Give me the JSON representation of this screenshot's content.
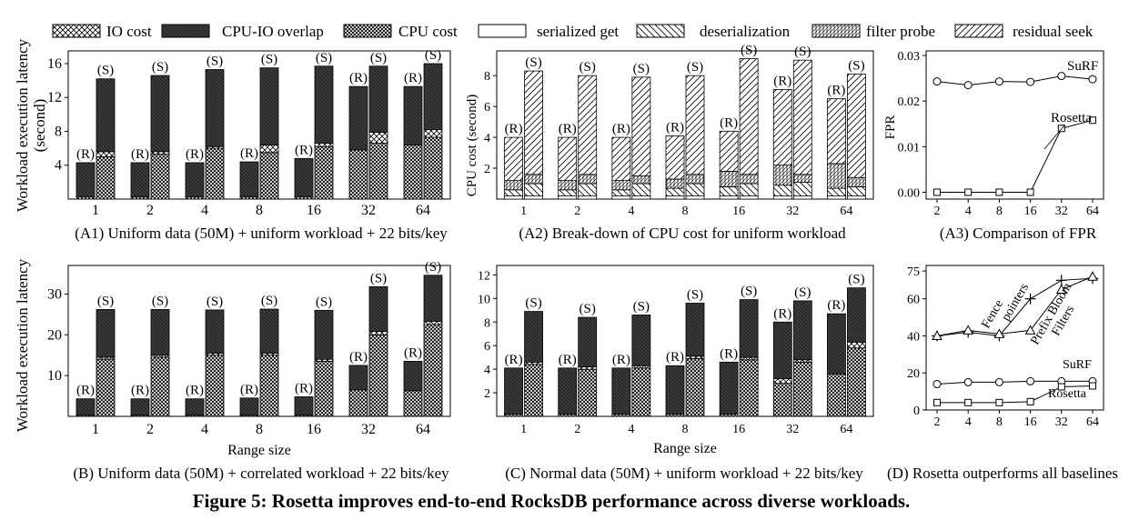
{
  "figure_caption": "Figure 5: Rosetta improves end-to-end RocksDB performance across diverse workloads.",
  "legend": [
    {
      "label": "IO cost",
      "pattern": "xhatch"
    },
    {
      "label": "CPU-IO overlap",
      "pattern": "dark"
    },
    {
      "label": "CPU cost",
      "pattern": "dense"
    },
    {
      "label": "serialized get",
      "pattern": "white"
    },
    {
      "label": "deserialization",
      "pattern": "back"
    },
    {
      "label": "filter probe",
      "pattern": "vert"
    },
    {
      "label": "residual seek",
      "pattern": "fwd"
    }
  ],
  "chart_data": [
    {
      "id": "A1",
      "type": "bar",
      "caption": "(A1) Uniform data (50M) + uniform workload + 22 bits/key",
      "ylabel": "Workload execution latency (second)",
      "ylabel_lines": [
        "Workload execution latency",
        "(second)"
      ],
      "xlabel": "",
      "ylim": [
        0,
        17.5
      ],
      "yticks": [
        4,
        8,
        12,
        16
      ],
      "categories": [
        "1",
        "2",
        "4",
        "8",
        "16",
        "32",
        "64"
      ],
      "bar_labels": [
        "(R)",
        "(S)"
      ],
      "series": [
        {
          "name": "(R)",
          "stacks": [
            {
              "component": "CPU cost",
              "values": [
                0.3,
                0.3,
                0.3,
                0.3,
                0.3,
                5.8,
                6.4
              ]
            },
            {
              "component": "IO cost",
              "values": [
                0,
                0,
                0,
                0,
                0,
                0,
                0
              ]
            },
            {
              "component": "CPU-IO overlap",
              "values": [
                4.0,
                4.0,
                4.0,
                4.1,
                4.5,
                7.5,
                6.9
              ]
            }
          ]
        },
        {
          "name": "(S)",
          "stacks": [
            {
              "component": "CPU cost",
              "values": [
                5.0,
                5.3,
                6.0,
                5.5,
                6.2,
                6.6,
                7.3
              ]
            },
            {
              "component": "IO cost",
              "values": [
                0.6,
                0.3,
                0.2,
                0.9,
                0.4,
                1.3,
                0.9
              ]
            },
            {
              "component": "CPU-IO overlap",
              "values": [
                8.6,
                9.0,
                9.1,
                9.1,
                9.1,
                7.8,
                7.8
              ]
            }
          ]
        }
      ]
    },
    {
      "id": "A2",
      "type": "bar",
      "caption": "(A2) Break-down of CPU cost for uniform workload",
      "ylabel": "CPU cost (second)",
      "xlabel": "",
      "ylim": [
        0,
        9.6
      ],
      "yticks": [
        2,
        4,
        6,
        8
      ],
      "categories": [
        "1",
        "2",
        "4",
        "8",
        "16",
        "32",
        "64"
      ],
      "bar_labels": [
        "(R)",
        "(S)"
      ],
      "series": [
        {
          "name": "(R)",
          "stacks": [
            {
              "component": "serialized get",
              "values": [
                0.2,
                0.2,
                0.2,
                0.2,
                0.2,
                0.2,
                0.2
              ]
            },
            {
              "component": "deserialization",
              "values": [
                0.4,
                0.4,
                0.4,
                0.5,
                0.6,
                0.7,
                0.5
              ]
            },
            {
              "component": "filter probe",
              "values": [
                0.6,
                0.6,
                0.6,
                0.6,
                1.0,
                1.3,
                1.6
              ]
            },
            {
              "component": "residual seek",
              "values": [
                2.8,
                2.8,
                2.8,
                2.8,
                2.6,
                4.9,
                4.2
              ]
            }
          ]
        },
        {
          "name": "(S)",
          "stacks": [
            {
              "component": "serialized get",
              "values": [
                0.2,
                0.2,
                0.2,
                0.2,
                0.2,
                0.2,
                0.2
              ]
            },
            {
              "component": "deserialization",
              "values": [
                0.8,
                0.8,
                0.8,
                0.8,
                0.8,
                0.9,
                0.6
              ]
            },
            {
              "component": "filter probe",
              "values": [
                0.6,
                0.6,
                0.5,
                0.6,
                0.6,
                0.5,
                0.6
              ]
            },
            {
              "component": "residual seek",
              "values": [
                6.7,
                6.4,
                6.4,
                6.4,
                7.5,
                7.4,
                6.7
              ]
            }
          ]
        }
      ]
    },
    {
      "id": "A3",
      "type": "line",
      "caption": "(A3) Comparison of FPR",
      "ylabel": "FPR",
      "xlabel": "",
      "x": [
        "2",
        "4",
        "8",
        "16",
        "32",
        "64"
      ],
      "ylim": [
        -0.0015,
        0.031
      ],
      "yticks": [
        0.0,
        0.01,
        0.02,
        0.03
      ],
      "ytick_labels": [
        "0.00",
        "0.01",
        "0.02",
        "0.03"
      ],
      "series": [
        {
          "name": "SuRF",
          "marker": "circle",
          "values": [
            0.0243,
            0.0235,
            0.0243,
            0.0242,
            0.0255,
            0.0248
          ]
        },
        {
          "name": "Rosetta",
          "marker": "square",
          "values": [
            0.0,
            0.0,
            0.0,
            0.0,
            0.014,
            0.0158
          ]
        }
      ],
      "annotations": [
        "SuRF",
        "Rosetta"
      ]
    },
    {
      "id": "B",
      "type": "bar",
      "caption": "(B) Uniform data (50M) + correlated workload + 22 bits/key",
      "ylabel": "Workload execution latency (second)",
      "ylabel_lines": [
        "Workload execution latency"
      ],
      "xlabel": "Range size",
      "ylim": [
        0,
        37
      ],
      "yticks": [
        10,
        20,
        30
      ],
      "categories": [
        "1",
        "2",
        "4",
        "8",
        "16",
        "32",
        "64"
      ],
      "bar_labels": [
        "(R)",
        "(S)"
      ],
      "series": [
        {
          "name": "(R)",
          "stacks": [
            {
              "component": "CPU cost",
              "values": [
                0.3,
                0.3,
                0.3,
                0.3,
                0.3,
                6.5,
                6.3
              ]
            },
            {
              "component": "IO cost",
              "values": [
                0,
                0,
                0,
                0,
                0,
                0,
                0
              ]
            },
            {
              "component": "CPU-IO overlap",
              "values": [
                4.0,
                4.0,
                4.0,
                4.2,
                4.5,
                6.0,
                7.2
              ]
            }
          ]
        },
        {
          "name": "(S)",
          "stacks": [
            {
              "component": "CPU cost",
              "values": [
                14.0,
                14.5,
                15.0,
                15.0,
                13.5,
                20.0,
                22.5
              ]
            },
            {
              "component": "IO cost",
              "values": [
                0.5,
                0.5,
                0.5,
                0.5,
                0.5,
                0.8,
                0.8
              ]
            },
            {
              "component": "CPU-IO overlap",
              "values": [
                11.7,
                11.2,
                10.6,
                10.8,
                12.0,
                11.0,
                11.3
              ]
            }
          ]
        }
      ]
    },
    {
      "id": "C",
      "type": "bar",
      "caption": "(C) Normal data (50M) + uniform workload + 22 bits/key",
      "ylabel": "",
      "xlabel": "Range size",
      "ylim": [
        0,
        12.8
      ],
      "yticks": [
        2,
        4,
        6,
        8,
        10,
        12
      ],
      "categories": [
        "1",
        "2",
        "4",
        "8",
        "16",
        "32",
        "64"
      ],
      "bar_labels": [
        "(R)",
        "(S)"
      ],
      "series": [
        {
          "name": "(R)",
          "stacks": [
            {
              "component": "CPU cost",
              "values": [
                0.2,
                0.2,
                0.2,
                0.2,
                0.2,
                2.8,
                3.6
              ]
            },
            {
              "component": "IO cost",
              "values": [
                0,
                0,
                0,
                0,
                0,
                0.4,
                0
              ]
            },
            {
              "component": "CPU-IO overlap",
              "values": [
                3.9,
                3.9,
                3.9,
                4.1,
                4.4,
                4.8,
                5.1
              ]
            }
          ]
        },
        {
          "name": "(S)",
          "stacks": [
            {
              "component": "CPU cost",
              "values": [
                4.4,
                4.0,
                4.1,
                4.9,
                4.8,
                4.6,
                5.8
              ]
            },
            {
              "component": "IO cost",
              "values": [
                0.2,
                0.2,
                0.2,
                0.2,
                0.2,
                0.2,
                0.5
              ]
            },
            {
              "component": "CPU-IO overlap",
              "values": [
                4.3,
                4.2,
                4.3,
                4.5,
                4.9,
                5.0,
                4.6
              ]
            }
          ]
        }
      ]
    },
    {
      "id": "D",
      "type": "line",
      "caption": "(D) Rosetta outperforms all baselines",
      "ylabel": "",
      "xlabel": "",
      "x": [
        "2",
        "4",
        "8",
        "16",
        "32",
        "64"
      ],
      "ylim": [
        0,
        78
      ],
      "yticks": [
        0,
        20,
        40,
        60,
        75
      ],
      "series": [
        {
          "name": "Fence pointers",
          "marker": "plus",
          "values": [
            40,
            42,
            40,
            60,
            70,
            71
          ]
        },
        {
          "name": "Prefix Bloom Filters",
          "marker": "triangle",
          "values": [
            40,
            43,
            41,
            43,
            65,
            72
          ]
        },
        {
          "name": "SuRF",
          "marker": "circle",
          "values": [
            14,
            15,
            15,
            15.5,
            15.5,
            15.5
          ]
        },
        {
          "name": "Rosetta",
          "marker": "square",
          "values": [
            4,
            4,
            4,
            4.5,
            12.5,
            13
          ]
        }
      ],
      "annotations": [
        "Fence pointers",
        "Prefix Bloom Filters",
        "SuRF",
        "Rosetta"
      ]
    }
  ]
}
